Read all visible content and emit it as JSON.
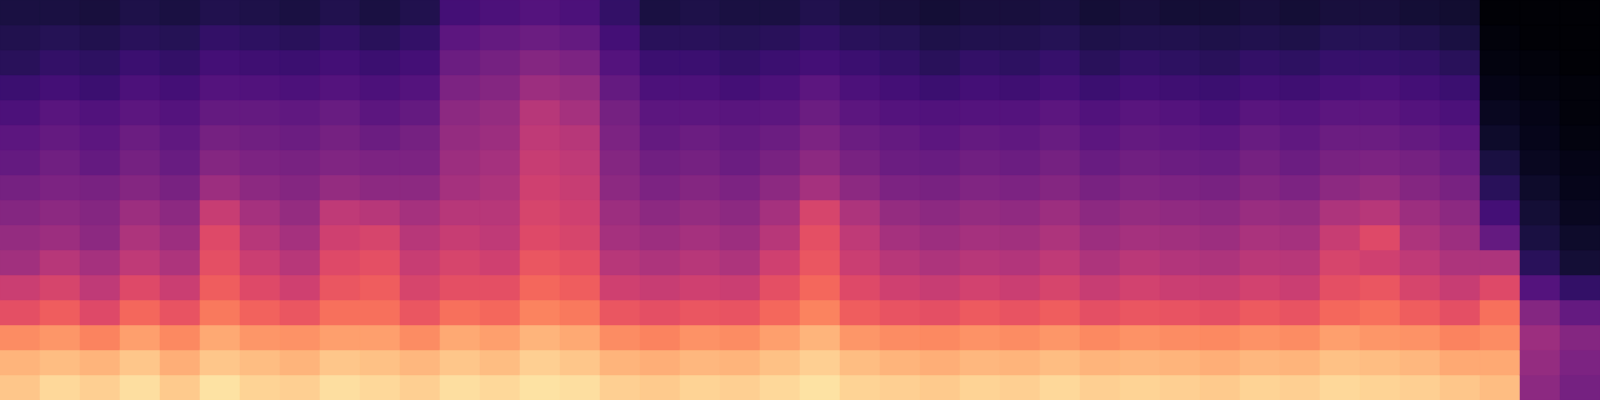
{
  "chart_data": {
    "type": "heatmap",
    "color": "magma",
    "tick_labels": false,
    "zlim": [
      0,
      100
    ],
    "cells": [
      [
        88,
        84,
        76,
        62,
        55,
        45,
        42,
        38,
        34,
        30,
        28,
        24,
        20,
        16,
        14,
        12
      ],
      [
        92,
        86,
        78,
        66,
        58,
        50,
        44,
        40,
        36,
        33,
        30,
        27,
        22,
        18,
        15,
        12
      ],
      [
        90,
        84,
        74,
        60,
        52,
        46,
        40,
        38,
        35,
        30,
        28,
        25,
        20,
        17,
        14,
        11
      ],
      [
        93,
        88,
        80,
        68,
        60,
        52,
        48,
        44,
        38,
        34,
        32,
        28,
        24,
        20,
        16,
        13
      ],
      [
        89,
        83,
        75,
        63,
        55,
        48,
        44,
        40,
        35,
        31,
        29,
        26,
        22,
        18,
        15,
        12
      ],
      [
        94,
        88,
        82,
        72,
        66,
        62,
        60,
        54,
        44,
        38,
        34,
        30,
        26,
        22,
        18,
        14
      ],
      [
        91,
        86,
        78,
        67,
        60,
        55,
        50,
        46,
        40,
        36,
        33,
        30,
        25,
        21,
        17,
        13
      ],
      [
        90,
        84,
        77,
        64,
        56,
        50,
        46,
        42,
        38,
        35,
        32,
        29,
        24,
        20,
        16,
        12
      ],
      [
        93,
        88,
        80,
        70,
        64,
        60,
        56,
        52,
        42,
        37,
        34,
        31,
        26,
        22,
        18,
        14
      ],
      [
        92,
        87,
        80,
        70,
        66,
        62,
        58,
        50,
        40,
        36,
        32,
        28,
        24,
        20,
        16,
        12
      ],
      [
        90,
        85,
        76,
        64,
        58,
        54,
        50,
        46,
        40,
        36,
        34,
        30,
        26,
        22,
        18,
        14
      ],
      [
        93,
        88,
        82,
        70,
        62,
        58,
        54,
        50,
        46,
        44,
        42,
        40,
        36,
        32,
        28,
        22
      ],
      [
        92,
        86,
        80,
        68,
        62,
        56,
        52,
        50,
        48,
        46,
        44,
        42,
        38,
        34,
        30,
        24
      ],
      [
        94,
        90,
        84,
        74,
        68,
        64,
        60,
        58,
        56,
        54,
        52,
        50,
        44,
        38,
        32,
        26
      ],
      [
        93,
        88,
        82,
        72,
        66,
        62,
        58,
        56,
        54,
        52,
        50,
        46,
        42,
        36,
        30,
        24
      ],
      [
        90,
        84,
        76,
        64,
        56,
        50,
        46,
        44,
        40,
        38,
        36,
        34,
        30,
        26,
        22,
        18
      ],
      [
        89,
        83,
        74,
        62,
        54,
        48,
        44,
        40,
        36,
        33,
        30,
        28,
        24,
        20,
        16,
        12
      ],
      [
        91,
        85,
        77,
        64,
        56,
        50,
        46,
        42,
        38,
        34,
        32,
        28,
        24,
        20,
        16,
        13
      ],
      [
        90,
        84,
        76,
        63,
        55,
        48,
        44,
        40,
        36,
        32,
        30,
        27,
        22,
        18,
        15,
        12
      ],
      [
        92,
        87,
        80,
        68,
        62,
        56,
        50,
        46,
        40,
        35,
        32,
        28,
        24,
        20,
        16,
        12
      ],
      [
        94,
        90,
        84,
        74,
        68,
        64,
        62,
        58,
        46,
        40,
        36,
        32,
        28,
        22,
        18,
        14
      ],
      [
        91,
        86,
        78,
        66,
        60,
        55,
        52,
        48,
        40,
        35,
        32,
        28,
        24,
        20,
        16,
        12
      ],
      [
        90,
        84,
        76,
        63,
        56,
        50,
        46,
        42,
        36,
        32,
        30,
        26,
        22,
        18,
        15,
        11
      ],
      [
        89,
        83,
        75,
        62,
        54,
        48,
        44,
        40,
        35,
        31,
        28,
        25,
        20,
        16,
        13,
        10
      ],
      [
        91,
        85,
        77,
        65,
        57,
        50,
        46,
        42,
        37,
        33,
        30,
        26,
        22,
        18,
        14,
        11
      ],
      [
        90,
        84,
        76,
        63,
        55,
        49,
        45,
        41,
        36,
        32,
        29,
        26,
        21,
        17,
        14,
        11
      ],
      [
        92,
        86,
        78,
        66,
        58,
        52,
        48,
        44,
        38,
        34,
        31,
        28,
        23,
        19,
        15,
        12
      ],
      [
        90,
        84,
        75,
        62,
        54,
        48,
        44,
        40,
        35,
        31,
        28,
        25,
        20,
        16,
        13,
        10
      ],
      [
        91,
        85,
        77,
        64,
        57,
        51,
        46,
        42,
        37,
        33,
        30,
        27,
        22,
        18,
        14,
        11
      ],
      [
        90,
        84,
        76,
        63,
        55,
        49,
        45,
        41,
        36,
        32,
        29,
        26,
        21,
        17,
        14,
        10
      ],
      [
        89,
        83,
        75,
        62,
        54,
        48,
        44,
        40,
        35,
        31,
        28,
        24,
        20,
        16,
        13,
        10
      ],
      [
        91,
        85,
        77,
        65,
        57,
        51,
        47,
        43,
        38,
        34,
        31,
        27,
        22,
        18,
        14,
        11
      ],
      [
        90,
        84,
        76,
        63,
        55,
        50,
        46,
        42,
        36,
        32,
        29,
        26,
        21,
        17,
        13,
        10
      ],
      [
        92,
        87,
        80,
        68,
        62,
        58,
        54,
        48,
        40,
        35,
        32,
        28,
        23,
        19,
        15,
        11
      ],
      [
        91,
        86,
        78,
        70,
        64,
        56,
        60,
        50,
        42,
        36,
        32,
        28,
        24,
        19,
        15,
        11
      ],
      [
        90,
        85,
        77,
        66,
        58,
        52,
        48,
        44,
        38,
        34,
        30,
        26,
        22,
        18,
        14,
        10
      ],
      [
        88,
        82,
        74,
        62,
        54,
        48,
        44,
        40,
        35,
        31,
        28,
        24,
        20,
        16,
        12,
        9
      ],
      [
        86,
        82,
        76,
        70,
        60,
        48,
        30,
        22,
        16,
        12,
        8,
        6,
        4,
        3,
        2,
        1
      ],
      [
        40,
        42,
        44,
        38,
        26,
        16,
        12,
        10,
        8,
        6,
        5,
        4,
        3,
        2,
        1,
        1
      ],
      [
        34,
        36,
        38,
        30,
        18,
        10,
        8,
        6,
        5,
        4,
        3,
        2,
        2,
        1,
        1,
        1
      ]
    ]
  }
}
